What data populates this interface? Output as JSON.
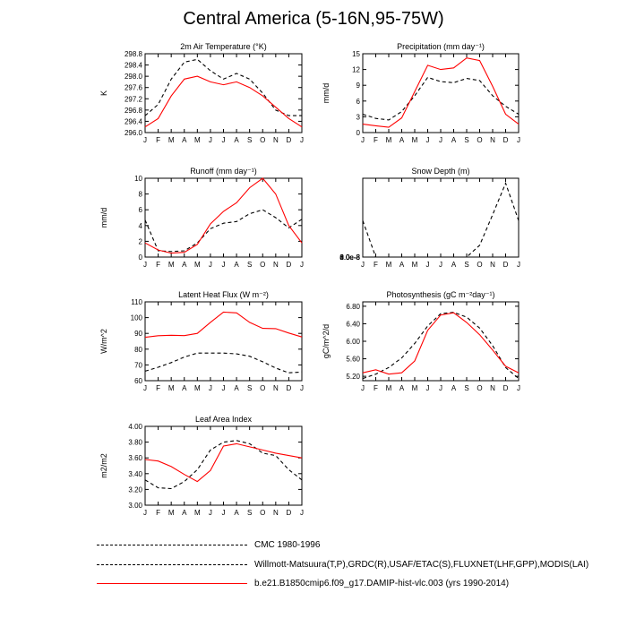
{
  "title": "Central America (5-16N,95-75W)",
  "months": [
    "J",
    "F",
    "M",
    "A",
    "M",
    "J",
    "J",
    "A",
    "S",
    "O",
    "N",
    "D",
    "J"
  ],
  "legend": [
    {
      "label": "CMC 1980-1996",
      "color": "#000000",
      "dash": true
    },
    {
      "label": "Willmott-Matsuura(T,P),GRDC(R),USAF/ETAC(S),FLUXNET(LHF,GPP),MODIS(LAI)",
      "color": "#000000",
      "dash": true
    },
    {
      "label": "b.e21.B1850cmip6.f09_g17.DAMIP-hist-vlc.003 (yrs 1990-2014)",
      "color": "#ff0000",
      "dash": false
    }
  ],
  "chart_data": [
    {
      "type": "line",
      "title": "2m Air Temperature (°K)",
      "ylabel": "K",
      "ylim": [
        296.0,
        298.8
      ],
      "yticks": [
        "296.0",
        "296.4",
        "296.8",
        "297.2",
        "297.6",
        "298.0",
        "298.4",
        "298.8"
      ],
      "series": [
        {
          "style": "dashed",
          "color": "#000000",
          "values": [
            296.6,
            297.0,
            297.9,
            298.5,
            298.6,
            298.2,
            297.9,
            298.1,
            297.9,
            297.4,
            296.8,
            296.6,
            296.6
          ]
        },
        {
          "style": "solid",
          "color": "#ff0000",
          "values": [
            296.2,
            296.5,
            297.3,
            297.9,
            298.0,
            297.8,
            297.7,
            297.8,
            297.6,
            297.3,
            296.9,
            296.5,
            296.2
          ]
        }
      ]
    },
    {
      "type": "line",
      "title": "Precipitation (mm day⁻¹)",
      "ylabel": "mm/d",
      "ylim": [
        0,
        15
      ],
      "yticks": [
        "0",
        "3",
        "6",
        "9",
        "12",
        "15"
      ],
      "series": [
        {
          "style": "dashed",
          "color": "#000000",
          "values": [
            3.5,
            2.7,
            2.4,
            4.0,
            7.0,
            10.5,
            9.7,
            9.5,
            10.3,
            9.9,
            7.0,
            5.0,
            3.5
          ]
        },
        {
          "style": "solid",
          "color": "#ff0000",
          "values": [
            1.6,
            1.3,
            1.0,
            2.8,
            7.8,
            12.8,
            12.0,
            12.3,
            14.2,
            13.7,
            8.8,
            3.5,
            1.6
          ]
        }
      ]
    },
    {
      "type": "line",
      "title": "Runoff (mm day⁻¹)",
      "ylabel": "mm/d",
      "ylim": [
        0,
        10
      ],
      "yticks": [
        "0",
        "2",
        "4",
        "6",
        "8",
        "10"
      ],
      "series": [
        {
          "style": "dashed",
          "color": "#000000",
          "values": [
            4.7,
            0.8,
            0.7,
            0.8,
            1.8,
            3.6,
            4.3,
            4.5,
            5.5,
            6.0,
            5.0,
            3.7,
            4.8
          ]
        },
        {
          "style": "solid",
          "color": "#ff0000",
          "values": [
            1.8,
            0.9,
            0.5,
            0.6,
            1.6,
            4.2,
            5.8,
            6.9,
            8.8,
            10.0,
            8.0,
            4.0,
            1.8
          ]
        }
      ]
    },
    {
      "type": "line",
      "title": "Snow Depth (m)",
      "ylabel": "",
      "ylim": [
        0,
        8e-08
      ],
      "yticks": [
        "0.0e-8",
        "2.0e-8",
        "4.0e-8",
        "6.0e-8",
        "8.0e-8"
      ],
      "series": [
        {
          "style": "dashed",
          "color": "#000000",
          "values": [
            3.7e-08,
            0,
            0,
            0,
            0,
            0,
            0,
            0,
            0,
            1.2e-08,
            4.3e-08,
            7.5e-08,
            3.7e-08
          ]
        }
      ]
    },
    {
      "type": "line",
      "title": "Latent Heat Flux (W m⁻²)",
      "ylabel": "W/m^2",
      "ylim": [
        60,
        110
      ],
      "yticks": [
        "60",
        "70",
        "80",
        "90",
        "100",
        "110"
      ],
      "series": [
        {
          "style": "dashed",
          "color": "#000000",
          "values": [
            66,
            68.5,
            71.5,
            75,
            77.5,
            77.5,
            77.5,
            77,
            75.5,
            72,
            68,
            65,
            65.5
          ]
        },
        {
          "style": "solid",
          "color": "#ff0000",
          "values": [
            87.5,
            88.5,
            88.8,
            88.6,
            90,
            97,
            103.5,
            103,
            97,
            93.2,
            93,
            90.2,
            87.7
          ]
        }
      ]
    },
    {
      "type": "line",
      "title": "Photosynthesis (gC m⁻²day⁻¹)",
      "ylabel": "gC/m^2/d",
      "ylim": [
        5.1,
        6.9
      ],
      "yticks": [
        "5.20",
        "5.60",
        "6.00",
        "6.40",
        "6.80"
      ],
      "series": [
        {
          "style": "dashed",
          "color": "#000000",
          "values": [
            5.15,
            5.25,
            5.4,
            5.62,
            5.95,
            6.35,
            6.63,
            6.66,
            6.55,
            6.3,
            5.9,
            5.4,
            5.15
          ]
        },
        {
          "style": "solid",
          "color": "#ff0000",
          "values": [
            5.28,
            5.35,
            5.25,
            5.28,
            5.55,
            6.25,
            6.6,
            6.65,
            6.43,
            6.15,
            5.8,
            5.43,
            5.28
          ]
        }
      ]
    },
    {
      "type": "line",
      "title": "Leaf Area Index",
      "ylabel": "m2/m2",
      "ylim": [
        3.0,
        4.0
      ],
      "yticks": [
        "3.00",
        "3.20",
        "3.40",
        "3.60",
        "3.80",
        "4.00"
      ],
      "series": [
        {
          "style": "dashed",
          "color": "#000000",
          "values": [
            3.32,
            3.22,
            3.21,
            3.3,
            3.45,
            3.7,
            3.8,
            3.82,
            3.78,
            3.66,
            3.63,
            3.45,
            3.32
          ]
        },
        {
          "style": "solid",
          "color": "#ff0000",
          "values": [
            3.58,
            3.56,
            3.49,
            3.39,
            3.3,
            3.44,
            3.75,
            3.78,
            3.74,
            3.7,
            3.66,
            3.63,
            3.6
          ]
        }
      ]
    }
  ]
}
